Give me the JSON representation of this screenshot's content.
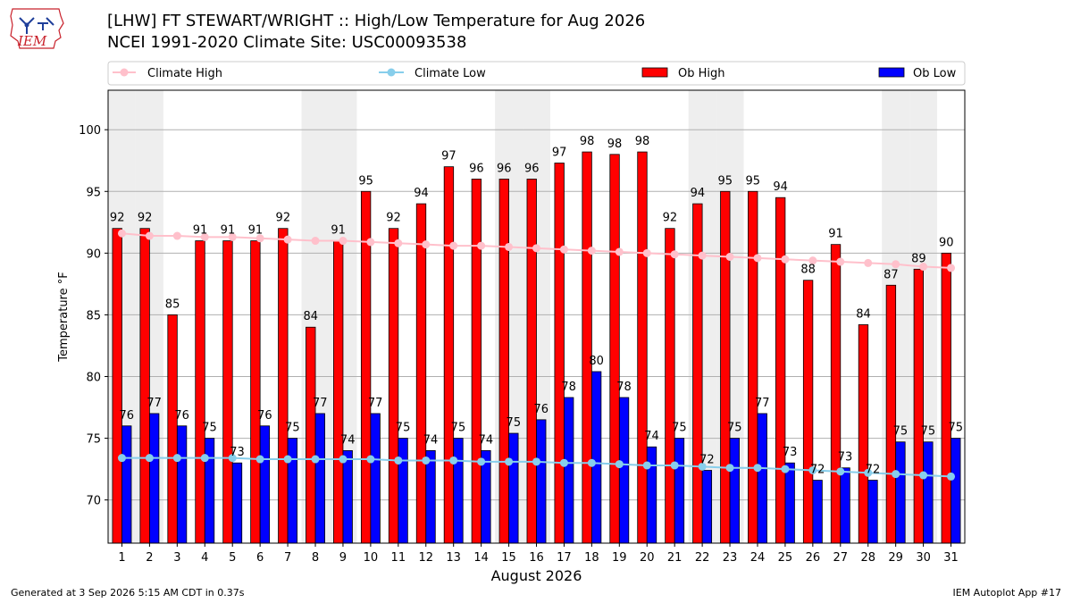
{
  "header": {
    "title_line1": "[LHW] FT STEWART/WRIGHT :: High/Low Temperature for Aug 2026",
    "title_line2": "NCEI 1991-2020 Climate Site: USC00093538",
    "logo_text": "IEM"
  },
  "footer": {
    "generated": "Generated at 3 Sep 2026 5:15 AM CDT in 0.37s",
    "app": "IEM Autoplot App #17"
  },
  "chart_data": {
    "type": "bar",
    "xlabel": "August 2026",
    "ylabel": "Temperature °F",
    "ylim": [
      66.5,
      103.2
    ],
    "yticks": [
      70,
      75,
      80,
      85,
      90,
      95,
      100
    ],
    "grid": true,
    "legend_position": "top",
    "days": [
      1,
      2,
      3,
      4,
      5,
      6,
      7,
      8,
      9,
      10,
      11,
      12,
      13,
      14,
      15,
      16,
      17,
      18,
      19,
      20,
      21,
      22,
      23,
      24,
      25,
      26,
      27,
      28,
      29,
      30,
      31
    ],
    "weekend_shading_days": [
      1,
      2,
      8,
      9,
      15,
      16,
      22,
      23,
      29,
      30
    ],
    "series": [
      {
        "name": "Climate High",
        "kind": "line",
        "color": "#ffc0cb",
        "values": [
          91.6,
          91.4,
          91.4,
          91.3,
          91.3,
          91.2,
          91.1,
          91.0,
          91.0,
          90.9,
          90.8,
          90.7,
          90.6,
          90.6,
          90.5,
          90.4,
          90.3,
          90.2,
          90.1,
          90.0,
          89.9,
          89.8,
          89.7,
          89.6,
          89.5,
          89.4,
          89.3,
          89.2,
          89.1,
          88.9,
          88.8
        ]
      },
      {
        "name": "Climate Low",
        "kind": "line",
        "color": "#87ceeb",
        "values": [
          73.4,
          73.4,
          73.4,
          73.4,
          73.4,
          73.3,
          73.3,
          73.3,
          73.3,
          73.3,
          73.2,
          73.2,
          73.2,
          73.1,
          73.1,
          73.1,
          73.0,
          73.0,
          72.9,
          72.8,
          72.8,
          72.7,
          72.6,
          72.6,
          72.5,
          72.4,
          72.3,
          72.2,
          72.1,
          72.0,
          71.9
        ]
      },
      {
        "name": "Ob High",
        "kind": "bar",
        "color": "#ff0000",
        "values": [
          92,
          92,
          85,
          91,
          91,
          91,
          92,
          84,
          91,
          95,
          92,
          94,
          97,
          96,
          96,
          96,
          97.3,
          98.2,
          98,
          98.2,
          92,
          94,
          95,
          95,
          94.5,
          87.8,
          90.7,
          84.2,
          87.4,
          88.7,
          90
        ],
        "labels": [
          "92",
          "92",
          "85",
          "91",
          "91",
          "91",
          "92",
          "84",
          "91",
          "95",
          "92",
          "94",
          "97",
          "96",
          "96",
          "96",
          "97",
          "98",
          "98",
          "98",
          "92",
          "94",
          "95",
          "95",
          "94",
          "88",
          "91",
          "84",
          "87",
          "89",
          "90"
        ]
      },
      {
        "name": "Ob Low",
        "kind": "bar",
        "color": "#0000ff",
        "values": [
          76,
          77,
          76,
          75,
          73,
          76,
          75,
          77,
          74,
          77,
          75,
          74,
          75,
          74,
          75.4,
          76.5,
          78.3,
          80.4,
          78.3,
          74.3,
          75,
          72.4,
          75,
          77,
          73,
          71.6,
          72.6,
          71.6,
          74.7,
          74.7,
          75
        ],
        "labels": [
          "76",
          "77",
          "76",
          "75",
          "73",
          "76",
          "75",
          "77",
          "74",
          "77",
          "75",
          "74",
          "75",
          "74",
          "75",
          "76",
          "78",
          "80",
          "78",
          "74",
          "75",
          "72",
          "75",
          "77",
          "73",
          "72",
          "73",
          "72",
          "75",
          "75",
          "75"
        ]
      }
    ]
  }
}
